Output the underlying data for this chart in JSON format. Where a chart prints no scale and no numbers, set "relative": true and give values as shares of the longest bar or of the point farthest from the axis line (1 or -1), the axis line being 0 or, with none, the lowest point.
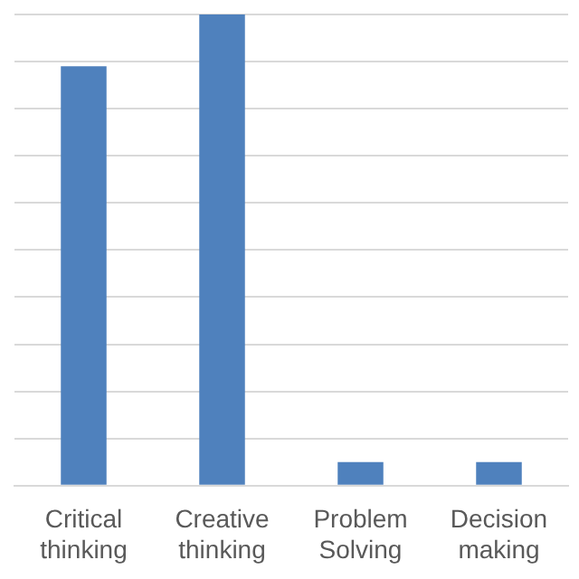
{
  "chart_data": {
    "type": "bar",
    "relative": true,
    "grid": "y",
    "categories": [
      "Critical thinking",
      "Creative thinking",
      "Problem Solving",
      "Decision making"
    ],
    "values": [
      0.89,
      1,
      0.05,
      0.05
    ],
    "color": "#4f81bd"
  }
}
